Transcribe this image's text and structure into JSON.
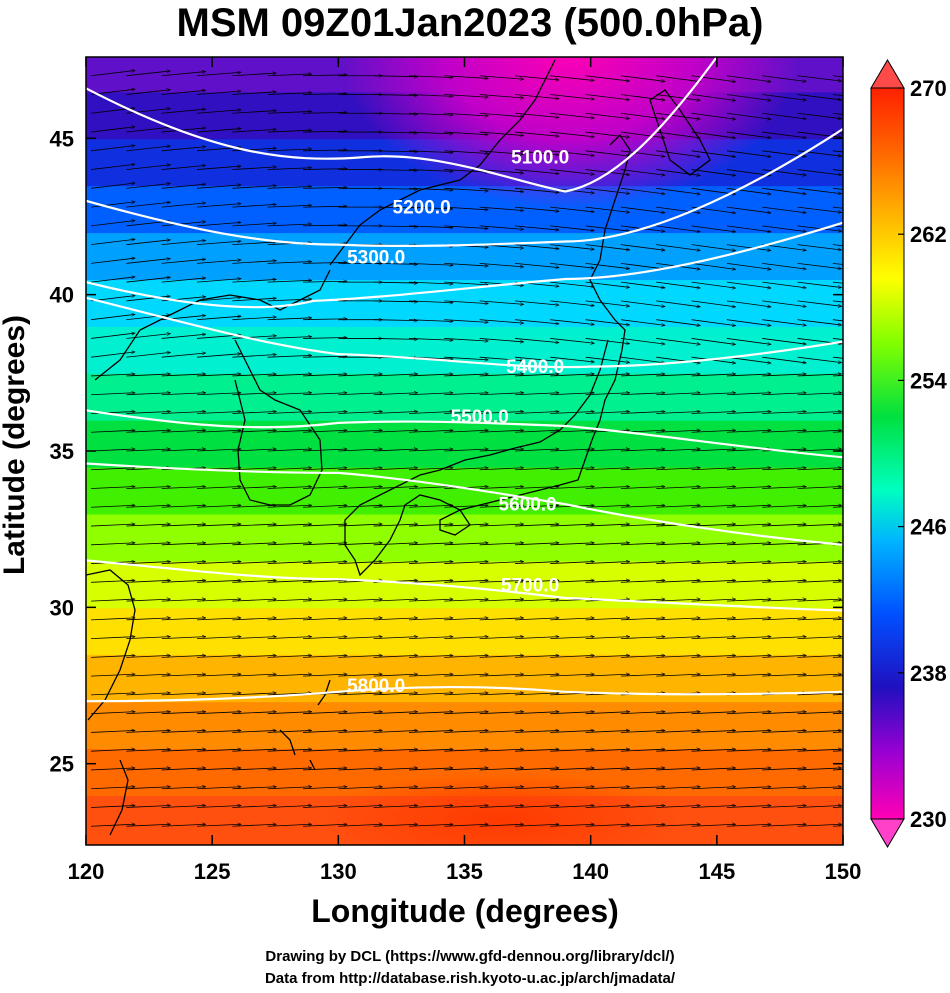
{
  "title": "MSM 09Z01Jan2023 (500.0hPa)",
  "xlabel": "Longitude (degrees)",
  "ylabel": "Latitude  (degrees)",
  "credits": [
    "Drawing by DCL (https://www.gfd-dennou.org/library/dcl/)",
    "Data from http://database.rish.kyoto-u.ac.jp/arch/jmadata/"
  ],
  "x_ticks": [
    120,
    125,
    130,
    135,
    140,
    145,
    150
  ],
  "y_ticks": [
    25,
    30,
    35,
    40,
    45
  ],
  "lon_range": [
    120,
    150
  ],
  "lat_range": [
    22.4,
    47.6
  ],
  "colorbar": {
    "min": 230,
    "max": 270,
    "tick_labels": [
      230,
      238,
      246,
      254,
      262,
      270
    ],
    "colors": [
      "#ff00b4",
      "#9b00d2",
      "#2010c0",
      "#0050ff",
      "#00b4ff",
      "#00ffc0",
      "#00e040",
      "#80ff00",
      "#ffff00",
      "#ffb000",
      "#ff6000",
      "#ff2000"
    ]
  },
  "contours": [
    {
      "label": "5100.0",
      "label_pos": [
        138.0,
        44.2
      ]
    },
    {
      "label": "5200.0",
      "label_pos": [
        133.3,
        42.6
      ]
    },
    {
      "label": "5300.0",
      "label_pos": [
        131.5,
        41.0
      ]
    },
    {
      "label": "5400.0",
      "label_pos": [
        137.8,
        37.5
      ]
    },
    {
      "label": "5500.0",
      "label_pos": [
        135.6,
        35.9
      ]
    },
    {
      "label": "5600.0",
      "label_pos": [
        137.5,
        33.1
      ]
    },
    {
      "label": "5700.0",
      "label_pos": [
        137.6,
        30.5
      ]
    },
    {
      "label": "5800.0",
      "label_pos": [
        131.5,
        27.3
      ]
    }
  ]
}
